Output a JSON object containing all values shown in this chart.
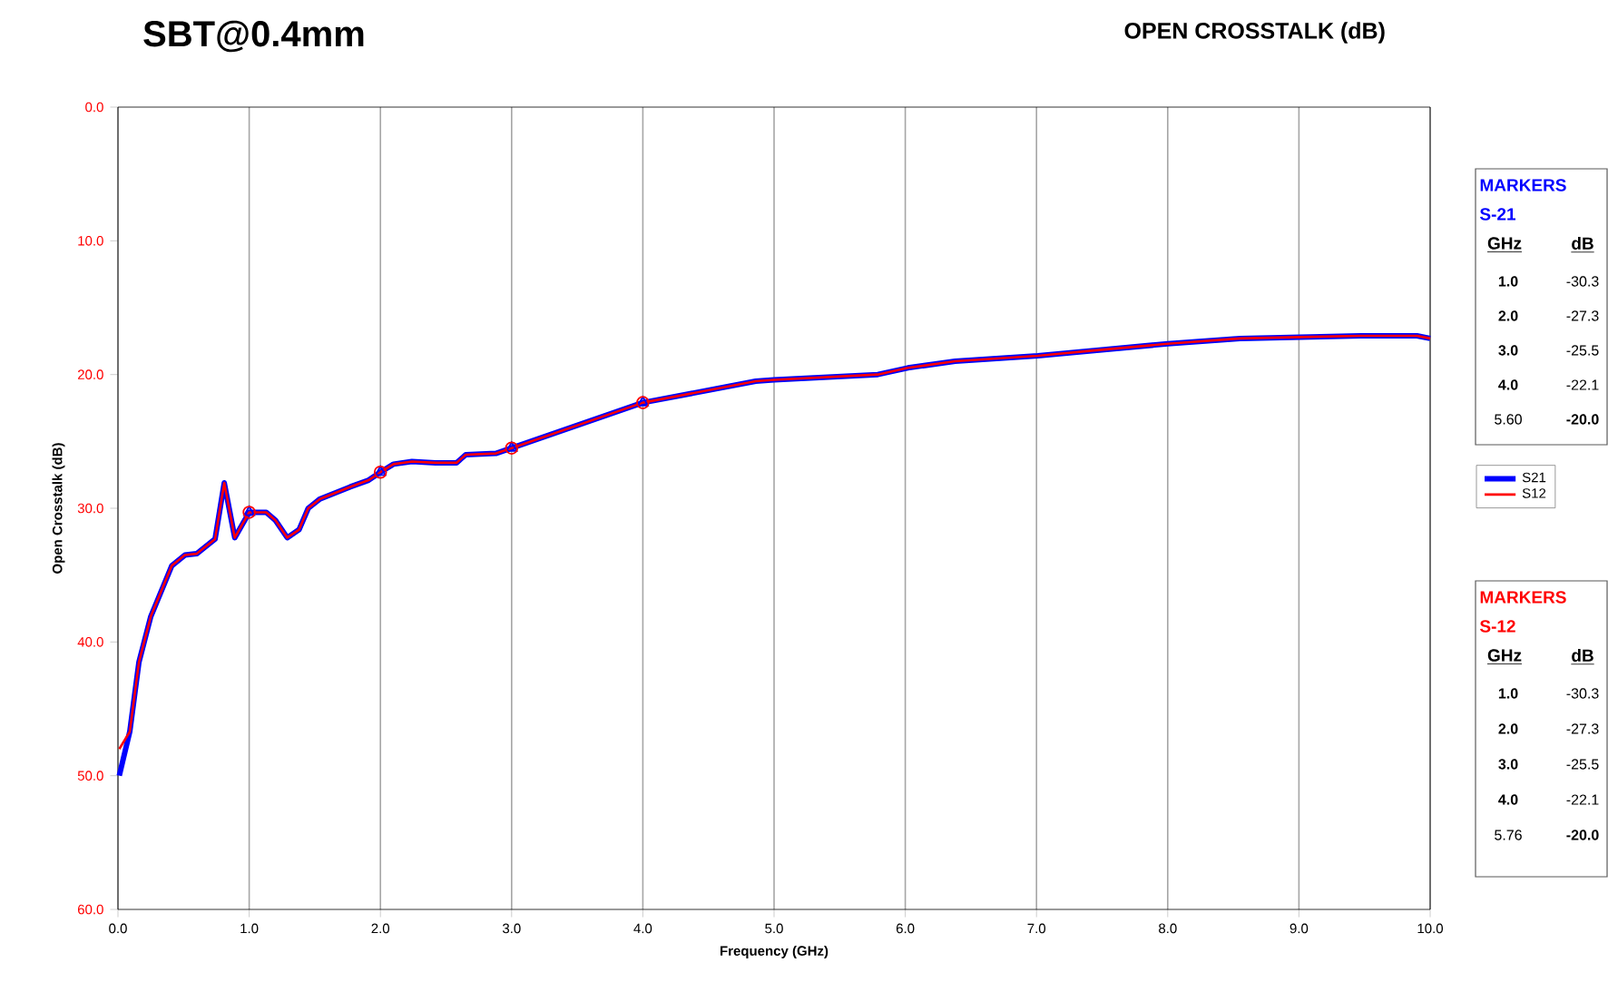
{
  "chart_data": {
    "type": "line",
    "title": "SBT@0.4mm",
    "subtitle": "OPEN CROSSTALK (dB)",
    "xlabel": "Frequency (GHz)",
    "ylabel": "Open Crosstalk (dB)",
    "xlim": [
      0,
      10
    ],
    "ylim": [
      60,
      0
    ],
    "xticks": [
      {
        "value": 0,
        "label": "0.0"
      },
      {
        "value": 1,
        "label": "1.0"
      },
      {
        "value": 2,
        "label": "2.0"
      },
      {
        "value": 3,
        "label": "3.0"
      },
      {
        "value": 4,
        "label": "4.0"
      },
      {
        "value": 5,
        "label": "5.0"
      },
      {
        "value": 6,
        "label": "6.0"
      },
      {
        "value": 7,
        "label": "7.0"
      },
      {
        "value": 8,
        "label": "8.0"
      },
      {
        "value": 9,
        "label": "9.0"
      },
      {
        "value": 10,
        "label": "10.0"
      }
    ],
    "yticks": [
      {
        "value": 0,
        "label": "0.0"
      },
      {
        "value": 10,
        "label": "10.0"
      },
      {
        "value": 20,
        "label": "20.0"
      },
      {
        "value": 30,
        "label": "30.0"
      },
      {
        "value": 40,
        "label": "40.0"
      },
      {
        "value": 50,
        "label": "50.0"
      },
      {
        "value": 60,
        "label": "60.0"
      }
    ],
    "grid": "x",
    "legend": "right",
    "marker": "none",
    "line_style": "solid",
    "series": [
      {
        "name": "S21",
        "color": "#0000ff",
        "x": [
          0.01,
          0.09,
          0.16,
          0.25,
          0.41,
          0.51,
          0.6,
          0.74,
          0.81,
          0.89,
          1.0,
          1.13,
          1.2,
          1.29,
          1.38,
          1.45,
          1.54,
          1.77,
          1.91,
          2.0,
          2.1,
          2.24,
          2.42,
          2.58,
          2.65,
          2.88,
          3.0,
          3.5,
          4.0,
          4.86,
          5.0,
          5.79,
          6.02,
          6.38,
          7.01,
          7.44,
          8.0,
          8.55,
          9.01,
          9.47,
          9.9,
          10.0
        ],
        "values": [
          50.0,
          46.7,
          41.5,
          38.1,
          34.3,
          33.5,
          33.4,
          32.3,
          28.1,
          32.2,
          30.3,
          30.3,
          30.9,
          32.2,
          31.6,
          30.0,
          29.3,
          28.4,
          27.9,
          27.3,
          26.7,
          26.5,
          26.6,
          26.6,
          26.0,
          25.9,
          25.5,
          23.8,
          22.1,
          20.5,
          20.4,
          20.0,
          19.5,
          19.0,
          18.6,
          18.2,
          17.7,
          17.3,
          17.2,
          17.1,
          17.1,
          17.3
        ]
      },
      {
        "name": "S12",
        "color": "#ff0000",
        "x": [
          0.01,
          0.09,
          0.16,
          0.25,
          0.41,
          0.51,
          0.6,
          0.74,
          0.81,
          0.89,
          1.0,
          1.13,
          1.2,
          1.29,
          1.38,
          1.45,
          1.54,
          1.77,
          1.91,
          2.0,
          2.1,
          2.24,
          2.42,
          2.58,
          2.65,
          2.88,
          3.0,
          3.5,
          4.0,
          4.86,
          5.0,
          5.79,
          6.02,
          6.38,
          7.01,
          7.44,
          8.0,
          8.55,
          9.01,
          9.47,
          9.9,
          10.0
        ],
        "values": [
          48.0,
          46.7,
          41.5,
          38.1,
          34.3,
          33.5,
          33.4,
          32.3,
          28.1,
          32.2,
          30.3,
          30.3,
          30.9,
          32.2,
          31.6,
          30.0,
          29.3,
          28.4,
          27.9,
          27.3,
          26.7,
          26.5,
          26.6,
          26.6,
          26.0,
          25.9,
          25.5,
          23.8,
          22.1,
          20.5,
          20.4,
          20.0,
          19.5,
          19.0,
          18.6,
          18.2,
          17.7,
          17.3,
          17.2,
          17.1,
          17.1,
          17.3
        ]
      },
      {
        "type": "scatter",
        "color": "#0000ff",
        "marker": "triangle",
        "x": [
          1.0,
          2.0,
          3.0,
          4.0
        ],
        "values": [
          30.3,
          27.3,
          25.5,
          22.1
        ]
      },
      {
        "type": "scatter",
        "color": "#ff0000",
        "marker": "circle",
        "x": [
          1.0,
          2.0,
          3.0,
          4.0
        ],
        "values": [
          30.3,
          27.3,
          25.5,
          22.1
        ]
      }
    ],
    "annotations": [
      "MARKERS",
      "S-21",
      "GHz",
      "dB",
      "1.0",
      "-30.3",
      "2.0",
      "-27.3",
      "3.0",
      "-25.5",
      "4.0",
      "-22.1",
      "5.60",
      "-20.0",
      "MARKERS",
      "S-12",
      "GHz",
      "dB",
      "1.0",
      "-30.3",
      "2.0",
      "-27.3",
      "3.0",
      "-25.5",
      "4.0",
      "-22.1",
      "5.76",
      "-20.0"
    ]
  }
}
